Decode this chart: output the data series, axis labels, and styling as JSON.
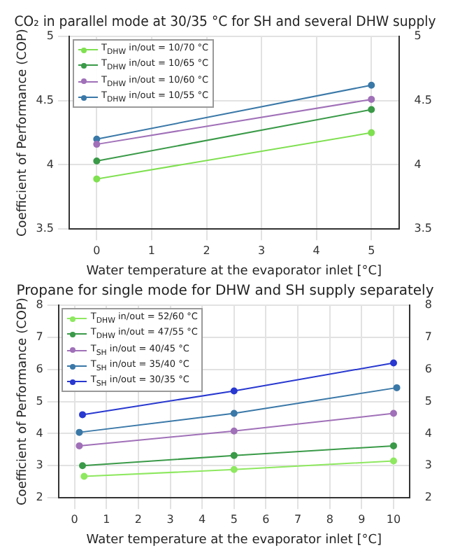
{
  "chart_data": [
    {
      "type": "line",
      "title": "CO₂ in parallel mode at 30/35 °C for SH and several DHW supply",
      "xlabel": "Water temperature at the evaporator inlet [°C]",
      "ylabel": "Coefficient of Performance (COP)",
      "x": [
        0,
        5
      ],
      "series": [
        {
          "name": "T$_{DHW}$ in/out = 10/70 °C",
          "color": "#7fe050",
          "values": [
            3.89,
            4.25
          ]
        },
        {
          "name": "T$_{DHW}$ in/out = 10/65 °C",
          "color": "#3a9a48",
          "values": [
            4.03,
            4.43
          ]
        },
        {
          "name": "T$_{DHW}$ in/out = 10/60 °C",
          "color": "#a070b8",
          "values": [
            4.16,
            4.51
          ]
        },
        {
          "name": "T$_{DHW}$ in/out = 10/55 °C",
          "color": "#3a78a8",
          "values": [
            4.2,
            4.62
          ]
        }
      ],
      "xlim": [
        -0.5,
        5.5
      ],
      "xticks": [
        0,
        1,
        2,
        3,
        4,
        5
      ],
      "ylim": [
        3.5,
        5.0
      ],
      "yticks": [
        3.5,
        4.0,
        4.5,
        5.0
      ],
      "y2lim": [
        3.5,
        5.0
      ],
      "y2ticks": [
        3.5,
        4.0,
        4.5,
        5.0
      ],
      "grid": true,
      "legend": "top left",
      "marker": "circle",
      "line_style": "solid"
    },
    {
      "type": "line",
      "title": "Propane for single mode for DHW and SH supply separately",
      "xlabel": "Water temperature at the evaporator inlet [°C]",
      "ylabel": "Coefficient of Performance (COP)",
      "series": [
        {
          "name": "T$_{DHW}$ in/out = 52/60 °C",
          "color": "#8ee860",
          "x": [
            0.3,
            5,
            10
          ],
          "values": [
            2.67,
            2.88,
            3.15
          ]
        },
        {
          "name": "T$_{DHW}$ in/out = 47/55 °C",
          "color": "#3a9a48",
          "x": [
            0.25,
            5,
            10
          ],
          "values": [
            3.0,
            3.32,
            3.62
          ]
        },
        {
          "name": "T$_{SH}$ in/out = 40/45 °C",
          "color": "#a070b8",
          "x": [
            0.15,
            5,
            10
          ],
          "values": [
            3.62,
            4.08,
            4.63
          ]
        },
        {
          "name": "T$_{SH}$ in/out = 35/40 °C",
          "color": "#3a78a8",
          "x": [
            0.15,
            5,
            10.1
          ],
          "values": [
            4.04,
            4.63,
            5.43
          ]
        },
        {
          "name": "T$_{SH}$ in/out = 30/35 °C",
          "color": "#2838d0",
          "x": [
            0.25,
            5,
            10
          ],
          "values": [
            4.59,
            5.33,
            6.2
          ]
        }
      ],
      "xlim": [
        -0.5,
        10.5
      ],
      "xticks": [
        0,
        1,
        2,
        3,
        4,
        5,
        6,
        7,
        8,
        9,
        10
      ],
      "ylim": [
        2,
        8
      ],
      "yticks": [
        2,
        3,
        4,
        5,
        6,
        7,
        8
      ],
      "y2lim": [
        2,
        8
      ],
      "y2ticks": [
        2,
        3,
        4,
        5,
        6,
        7,
        8
      ],
      "grid": true,
      "legend": "top left",
      "marker": "circle",
      "line_style": "solid"
    }
  ]
}
